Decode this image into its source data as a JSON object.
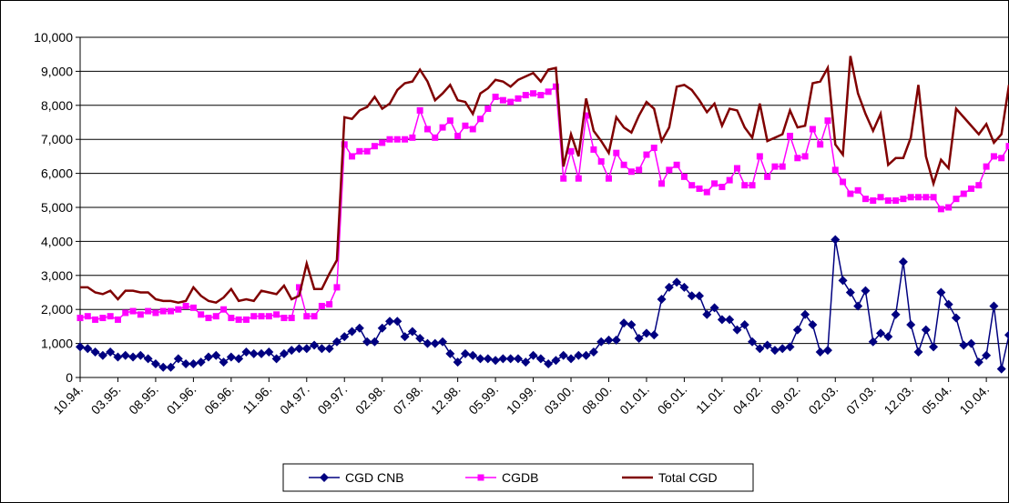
{
  "chart_data": {
    "type": "line",
    "categories": [
      "10.94.",
      null,
      null,
      null,
      null,
      "03.95.",
      null,
      null,
      null,
      null,
      "08.95.",
      null,
      null,
      null,
      null,
      "01.96.",
      null,
      null,
      null,
      null,
      "06.96.",
      null,
      null,
      null,
      null,
      "11.96.",
      null,
      null,
      null,
      null,
      "04.97.",
      null,
      null,
      null,
      null,
      "09.97.",
      null,
      null,
      null,
      null,
      "02.98.",
      null,
      null,
      null,
      null,
      "07.98.",
      null,
      null,
      null,
      null,
      "12.98.",
      null,
      null,
      null,
      null,
      "05.99.",
      null,
      null,
      null,
      null,
      "10.99.",
      null,
      null,
      null,
      null,
      "03.00.",
      null,
      null,
      null,
      null,
      "08.00.",
      null,
      null,
      null,
      null,
      "01.01.",
      null,
      null,
      null,
      null,
      "06.01.",
      null,
      null,
      null,
      null,
      "11.01.",
      null,
      null,
      null,
      null,
      "04.02.",
      null,
      null,
      null,
      null,
      "09.02.",
      null,
      null,
      null,
      null,
      "02.03.",
      null,
      null,
      null,
      null,
      "07.03.",
      null,
      null,
      null,
      null,
      "12.03.",
      null,
      null,
      null,
      null,
      "05.04.",
      null,
      null,
      null,
      null,
      "10.04.",
      null,
      null,
      null
    ],
    "series": [
      {
        "name": "CGD CNB",
        "color": "#000080",
        "marker": "diamond",
        "values": [
          900,
          850,
          750,
          650,
          750,
          600,
          650,
          600,
          650,
          550,
          400,
          300,
          300,
          550,
          400,
          400,
          450,
          600,
          650,
          450,
          600,
          550,
          750,
          700,
          700,
          750,
          550,
          700,
          800,
          850,
          850,
          950,
          850,
          850,
          1050,
          1200,
          1350,
          1450,
          1050,
          1050,
          1450,
          1650,
          1650,
          1200,
          1350,
          1150,
          1000,
          1000,
          1050,
          700,
          450,
          700,
          650,
          550,
          550,
          500,
          550,
          550,
          550,
          450,
          650,
          550,
          400,
          500,
          650,
          550,
          650,
          650,
          750,
          1050,
          1100,
          1100,
          1600,
          1550,
          1150,
          1300,
          1250,
          2300,
          2650,
          2800,
          2650,
          2400,
          2400,
          1850,
          2050,
          1700,
          1700,
          1400,
          1550,
          1050,
          850,
          950,
          800,
          850,
          900,
          1400,
          1850,
          1550,
          750,
          800,
          4050,
          2850,
          2500,
          2100,
          2550,
          1050,
          1300,
          1200,
          1850,
          3400,
          1550,
          750,
          1400,
          900,
          2500,
          2150,
          1750,
          950,
          1000,
          450,
          650,
          2100,
          250,
          1250
        ]
      },
      {
        "name": "CGDB",
        "color": "#ff00ff",
        "marker": "square",
        "values": [
          1750,
          1800,
          1700,
          1750,
          1800,
          1700,
          1900,
          1950,
          1850,
          1950,
          1900,
          1950,
          1950,
          2000,
          2100,
          2050,
          1850,
          1750,
          1800,
          2000,
          1750,
          1700,
          1700,
          1800,
          1800,
          1800,
          1850,
          1750,
          1750,
          2650,
          1800,
          1800,
          2100,
          2150,
          2650,
          6850,
          6500,
          6650,
          6650,
          6800,
          6900,
          7000,
          7000,
          7000,
          7050,
          7850,
          7300,
          7050,
          7350,
          7550,
          7100,
          7400,
          7300,
          7600,
          7900,
          8250,
          8150,
          8100,
          8200,
          8300,
          8350,
          8300,
          8400,
          8550,
          5850,
          6650,
          5850,
          7700,
          6700,
          6350,
          5850,
          6600,
          6250,
          6050,
          6100,
          6550,
          6750,
          5700,
          6100,
          6250,
          5900,
          5650,
          5550,
          5450,
          5700,
          5600,
          5800,
          6150,
          5650,
          5650,
          6500,
          5900,
          6200,
          6200,
          7100,
          6450,
          6500,
          7300,
          6850,
          7550,
          6100,
          5750,
          5400,
          5500,
          5250,
          5200,
          5300,
          5200,
          5200,
          5250,
          5300,
          5300,
          5300,
          5300,
          4950,
          5000,
          5250,
          5400,
          5550,
          5650,
          6200,
          6500,
          6450,
          6800
        ]
      },
      {
        "name": "Total CGD",
        "color": "#800000",
        "marker": "none",
        "values": [
          2650,
          2650,
          2500,
          2450,
          2550,
          2300,
          2550,
          2550,
          2500,
          2500,
          2300,
          2250,
          2250,
          2200,
          2250,
          2650,
          2400,
          2250,
          2200,
          2350,
          2600,
          2250,
          2300,
          2250,
          2550,
          2500,
          2450,
          2700,
          2300,
          2400,
          3350,
          2600,
          2600,
          3050,
          3450,
          7650,
          7600,
          7850,
          7950,
          8250,
          7900,
          8050,
          8450,
          8650,
          8700,
          9050,
          8700,
          8150,
          8350,
          8600,
          8150,
          8100,
          7750,
          8350,
          8500,
          8750,
          8700,
          8550,
          8750,
          8850,
          8950,
          8700,
          9050,
          9100,
          6200,
          7150,
          6500,
          8200,
          7250,
          6950,
          6600,
          7650,
          7350,
          7200,
          7700,
          8100,
          7900,
          6950,
          7350,
          8550,
          8600,
          8450,
          8150,
          7800,
          8050,
          7400,
          7900,
          7850,
          7350,
          7050,
          8050,
          6950,
          7050,
          7150,
          7850,
          7350,
          7400,
          8650,
          8700,
          9100,
          6850,
          6550,
          9450,
          8350,
          7750,
          7250,
          7750,
          6250,
          6450,
          6450,
          7050,
          8600,
          6500,
          5700,
          6400,
          6150,
          7900,
          7650,
          7400,
          7150,
          7450,
          6900,
          7150,
          8600
        ]
      }
    ],
    "ylim": [
      0,
      10000
    ],
    "yticks": [
      0,
      {
        "value": 1000,
        "label": "1,000"
      },
      {
        "value": 2000,
        "label": "2,000"
      },
      {
        "value": 3000,
        "label": "3,000"
      },
      {
        "value": 4000,
        "label": "4,000"
      },
      {
        "value": 5000,
        "label": "5,000"
      },
      {
        "value": 6000,
        "label": "6,000"
      },
      {
        "value": 7000,
        "label": "7,000"
      },
      {
        "value": 8000,
        "label": "8,000"
      },
      {
        "value": 9000,
        "label": "9,000"
      },
      {
        "value": 10000,
        "label": "10,000"
      }
    ],
    "grid": true,
    "legend": "bottom"
  }
}
